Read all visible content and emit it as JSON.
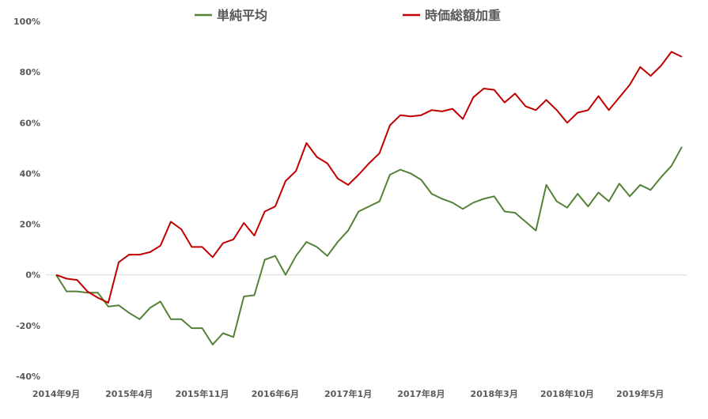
{
  "chart_data": {
    "type": "line",
    "title": "",
    "xlabel": "",
    "ylabel": "",
    "ylim": [
      -40,
      100
    ],
    "yticks": [
      -40,
      -20,
      0,
      20,
      40,
      60,
      80,
      100
    ],
    "ytick_labels": [
      "-40%",
      "-20%",
      "0%",
      "20%",
      "40%",
      "60%",
      "80%",
      "100%"
    ],
    "xtick_labels": [
      "2014年9月",
      "2015年4月",
      "2015年11月",
      "2016年6月",
      "2017年1月",
      "2017年8月",
      "2018年3月",
      "2018年10月",
      "2019年5月"
    ],
    "xtick_index": [
      0,
      7,
      14,
      21,
      28,
      35,
      42,
      49,
      56
    ],
    "legend_position": "top",
    "grid": false,
    "series": [
      {
        "name": "単純平均",
        "color": "#538135",
        "values": [
          0,
          -6.5,
          -6.5,
          -7,
          -7,
          -12.5,
          -12,
          -15,
          -17.5,
          -13,
          -10.5,
          -17.5,
          -17.5,
          -21,
          -21,
          -27.5,
          -23,
          -24.5,
          -8.5,
          -8,
          6,
          7.5,
          0,
          7.5,
          13,
          11,
          7.5,
          13,
          17.5,
          25,
          27,
          29,
          39.5,
          41.5,
          40,
          37.5,
          32,
          30,
          28.5,
          26,
          28.5,
          30,
          31,
          25,
          24.5,
          21,
          17.5,
          35.5,
          29,
          26.5,
          32,
          27,
          32.5,
          29,
          36,
          31,
          35.5,
          33.5,
          38.5,
          43,
          50.5
        ]
      },
      {
        "name": "時価総額加重",
        "color": "#C00000",
        "values": [
          0,
          -1.5,
          -2,
          -6.5,
          -9,
          -11,
          5,
          8,
          8,
          9,
          11.5,
          21,
          18,
          11,
          11,
          7,
          12.5,
          14,
          20.5,
          15.5,
          25,
          27,
          37,
          41,
          52,
          46.5,
          44,
          38,
          35.5,
          39.5,
          44,
          48,
          59,
          63,
          62.5,
          63,
          65,
          64.5,
          65.5,
          61.5,
          70,
          73.5,
          73,
          68,
          71.5,
          66.5,
          65,
          69,
          65,
          60,
          64,
          65,
          70.5,
          65,
          70,
          75,
          82,
          78.5,
          82.5,
          88,
          86
        ]
      }
    ]
  }
}
